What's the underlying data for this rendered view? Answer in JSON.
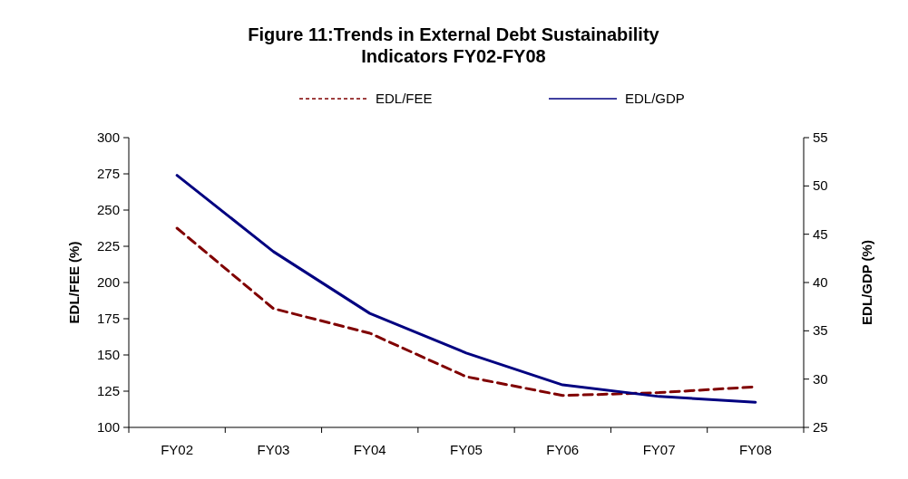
{
  "chart_data": {
    "type": "line",
    "title": "Figure 11:Trends in External Debt Sustainability Indicators FY02-FY08",
    "ylabel": "EDL/FEE (%)",
    "y2label": "EDL/GDP (%)",
    "categories": [
      "FY02",
      "FY03",
      "FY04",
      "FY05",
      "FY06",
      "FY07",
      "FY08"
    ],
    "series": [
      {
        "name": "EDL/FEE",
        "color": "#800000",
        "line_style": "dashed",
        "values": [
          237.5,
          182,
          165,
          135,
          122,
          124,
          128
        ]
      },
      {
        "name": "EDL/GDP",
        "color": "#000080",
        "line_style": "solid",
        "axis": "y2",
        "values": [
          51.1,
          43.2,
          36.8,
          32.7,
          29.4,
          28.2,
          27.6
        ]
      }
    ],
    "ylim": [
      100,
      300
    ],
    "yticks": [
      100,
      125,
      150,
      175,
      200,
      225,
      250,
      275,
      300
    ],
    "y2lim": [
      25,
      55
    ],
    "y2ticks": [
      25,
      30,
      35,
      40,
      45,
      50,
      55
    ],
    "legend": "top",
    "grid": false
  }
}
